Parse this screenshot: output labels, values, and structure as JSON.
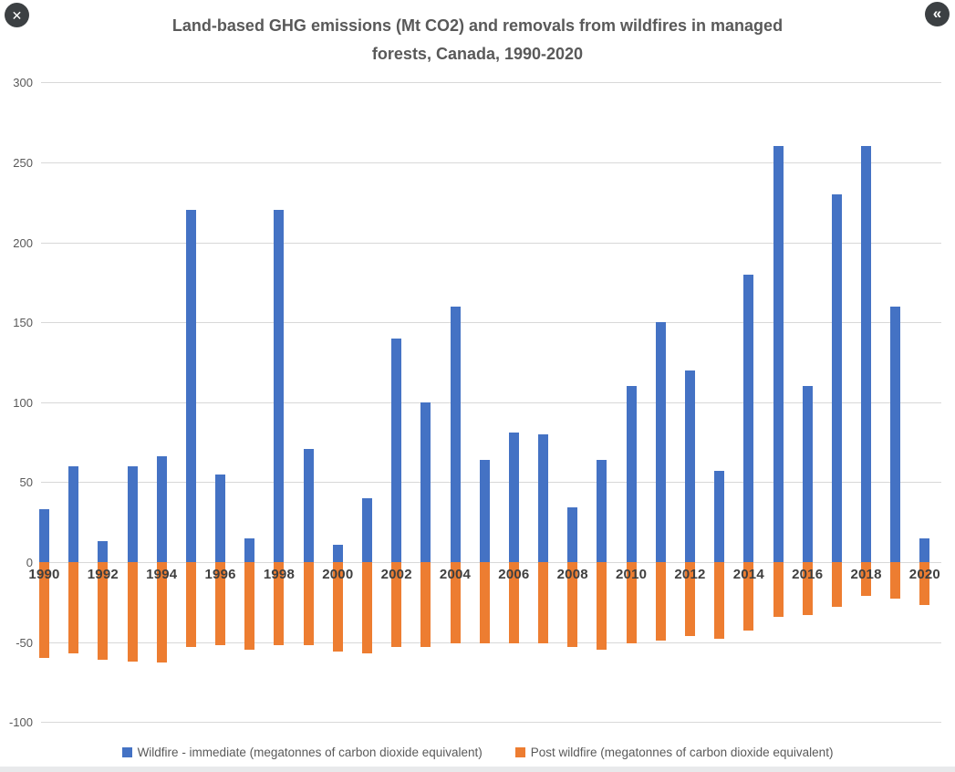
{
  "icons": {
    "close": "✕",
    "collapse": "«"
  },
  "chart_data": {
    "type": "bar",
    "title": "Land-based GHG emissions (Mt CO2) and removals from wildfires in managed forests, Canada, 1990-2020",
    "title_lines": [
      "Land-based GHG emissions (Mt CO2) and removals from wildfires in managed",
      "forests, Canada, 1990-2020"
    ],
    "categories": [
      1990,
      1991,
      1992,
      1993,
      1994,
      1995,
      1996,
      1997,
      1998,
      1999,
      2000,
      2001,
      2002,
      2003,
      2004,
      2005,
      2006,
      2007,
      2008,
      2009,
      2010,
      2011,
      2012,
      2013,
      2014,
      2015,
      2016,
      2017,
      2018,
      2019,
      2020
    ],
    "series": [
      {
        "name": "Wildfire - immediate (megatonnes of carbon dioxide equivalent)",
        "color": "#4472C4",
        "values": [
          33,
          60,
          13,
          60,
          66,
          220,
          55,
          15,
          220,
          71,
          11,
          40,
          140,
          100,
          160,
          64,
          81,
          80,
          34,
          64,
          110,
          150,
          120,
          57,
          180,
          260,
          110,
          230,
          260,
          160,
          15
        ]
      },
      {
        "name": "Post wildfire (megatonnes of carbon dioxide equivalent)",
        "color": "#ED7D31",
        "values": [
          -60,
          -57,
          -61,
          -62,
          -63,
          -53,
          -52,
          -55,
          -52,
          -52,
          -56,
          -57,
          -53,
          -53,
          -51,
          -51,
          -51,
          -51,
          -53,
          -55,
          -51,
          -49,
          -46,
          -48,
          -43,
          -34,
          -33,
          -28,
          -21,
          -23,
          -27
        ]
      }
    ],
    "ylim": [
      -100,
      300
    ],
    "yticks": [
      300,
      250,
      200,
      150,
      100,
      50,
      0,
      -50,
      -100
    ],
    "xtick_labels": [
      "1990",
      "1992",
      "1994",
      "1996",
      "1998",
      "2000",
      "2002",
      "2004",
      "2006",
      "2008",
      "2010",
      "2012",
      "2014",
      "2016",
      "2018",
      "2020"
    ],
    "grid": true,
    "legend_position": "bottom",
    "xlabel": "",
    "ylabel": ""
  }
}
